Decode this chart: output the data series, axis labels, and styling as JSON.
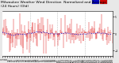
{
  "title_line1": "Milwaukee Weather Wind Direction",
  "title_line2": "Normalized and Average",
  "title_line3": "(24 Hours) (Old)",
  "n_points": 200,
  "bar_color": "#dd0000",
  "avg_color": "#0000cc",
  "background_color": "#e8e8e8",
  "plot_bg_color": "#ffffff",
  "ylim": [
    -6.5,
    6.5
  ],
  "yticks": [
    -5,
    0,
    5
  ],
  "grid_color": "#999999",
  "n_vgrid": 3,
  "legend_colors": [
    "#0000cc",
    "#dd0000"
  ],
  "title_fontsize": 3.2,
  "tick_fontsize": 2.2,
  "n_xticks": 48
}
